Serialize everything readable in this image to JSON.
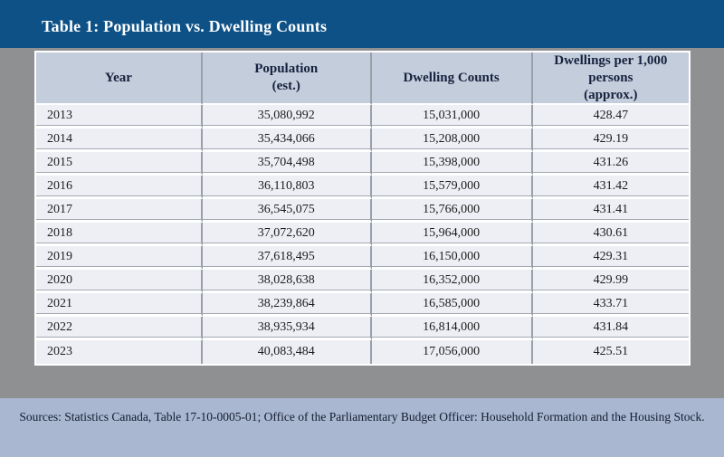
{
  "title_bar": {
    "title": "Table 1: Population vs. Dwelling Counts"
  },
  "table": {
    "headers": [
      {
        "label": "Year"
      },
      {
        "label": "Population\n(est.)"
      },
      {
        "label": "Dwelling Counts"
      },
      {
        "label": "Dwellings per 1,000 persons\n(approx.)"
      }
    ],
    "rows": [
      {
        "year": "2013",
        "population": "35,080,992",
        "dwelling_counts": "15,031,000",
        "dwellings_per_1000": "428.47"
      },
      {
        "year": "2014",
        "population": "35,434,066",
        "dwelling_counts": "15,208,000",
        "dwellings_per_1000": "429.19"
      },
      {
        "year": "2015",
        "population": "35,704,498",
        "dwelling_counts": "15,398,000",
        "dwellings_per_1000": "431.26"
      },
      {
        "year": "2016",
        "population": "36,110,803",
        "dwelling_counts": "15,579,000",
        "dwellings_per_1000": "431.42"
      },
      {
        "year": "2017",
        "population": "36,545,075",
        "dwelling_counts": "15,766,000",
        "dwellings_per_1000": "431.41"
      },
      {
        "year": "2018",
        "population": "37,072,620",
        "dwelling_counts": "15,964,000",
        "dwellings_per_1000": "430.61"
      },
      {
        "year": "2019",
        "population": "37,618,495",
        "dwelling_counts": "16,150,000",
        "dwellings_per_1000": "429.31"
      },
      {
        "year": "2020",
        "population": "38,028,638",
        "dwelling_counts": "16,352,000",
        "dwellings_per_1000": "429.99"
      },
      {
        "year": "2021",
        "population": "38,239,864",
        "dwelling_counts": "16,585,000",
        "dwellings_per_1000": "433.71"
      },
      {
        "year": "2022",
        "population": "38,935,934",
        "dwelling_counts": "16,814,000",
        "dwellings_per_1000": "431.84"
      },
      {
        "year": "2023",
        "population": "40,083,484",
        "dwelling_counts": "17,056,000",
        "dwellings_per_1000": "425.51"
      }
    ]
  },
  "footer": {
    "sources": "Sources: Statistics Canada, Table 17-10-0005-01; Office of the Parliamentary Budget Officer: Household Formation and the Housing Stock."
  },
  "colors": {
    "title_bar_bg": "#0d5186",
    "title_text": "#ffffff",
    "header_bg": "#c4cddc",
    "header_text": "#16223e",
    "row_bg": "#edeff5",
    "column_divider": "#9aa0aa",
    "side_bg": "#8f9092",
    "footer_bg": "#a9b7d1",
    "body_text": "#1c1c1c"
  }
}
